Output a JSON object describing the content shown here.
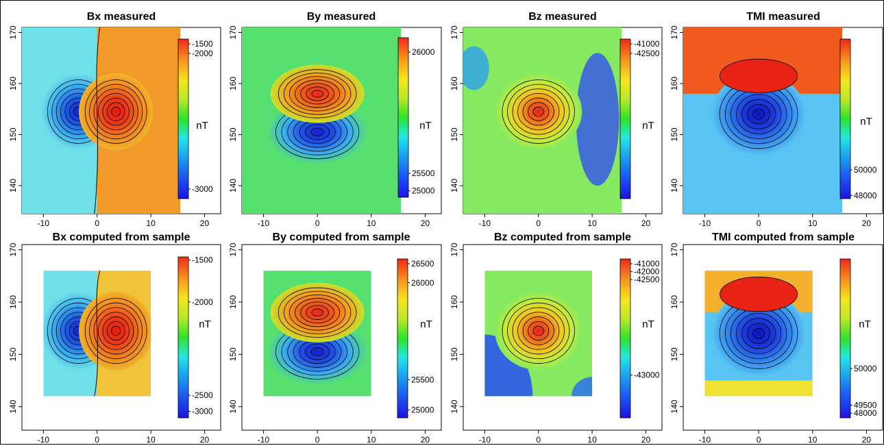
{
  "chart_data": [
    {
      "type": "heatmap",
      "title": "Bx   measured",
      "field": "bx",
      "kind": "measured",
      "xticks": [
        "-10",
        "0",
        "10",
        "20"
      ],
      "yticks": [
        "140",
        "150",
        "160",
        "170"
      ],
      "xlim": [
        -14,
        23
      ],
      "ylim": [
        134.5,
        171
      ],
      "extent": {
        "x": [
          -14,
          15.5
        ],
        "y": [
          134.5,
          171
        ]
      },
      "colorbar": {
        "unit": "nT",
        "labels": [
          "-1500",
          "-2000",
          "-3000"
        ],
        "label_fracs": [
          0.03,
          0.09,
          0.94
        ]
      }
    },
    {
      "type": "heatmap",
      "title": "By   measured",
      "field": "by",
      "kind": "measured",
      "xticks": [
        "-10",
        "0",
        "10",
        "20"
      ],
      "yticks": [
        "140",
        "150",
        "160",
        "170"
      ],
      "xlim": [
        -14,
        23
      ],
      "ylim": [
        134.5,
        171
      ],
      "extent": {
        "x": [
          -14,
          15.5
        ],
        "y": [
          134.5,
          171
        ]
      },
      "colorbar": {
        "unit": "nT",
        "labels": [
          "26000",
          "25500",
          "25000"
        ],
        "label_fracs": [
          0.09,
          0.85,
          0.96
        ]
      }
    },
    {
      "type": "heatmap",
      "title": "Bz   measured",
      "field": "bz",
      "kind": "measured",
      "xticks": [
        "-10",
        "0",
        "10",
        "20"
      ],
      "yticks": [
        "140",
        "150",
        "160",
        "170"
      ],
      "xlim": [
        -14,
        23
      ],
      "ylim": [
        134.5,
        171
      ],
      "extent": {
        "x": [
          -14,
          15.5
        ],
        "y": [
          134.5,
          171
        ]
      },
      "colorbar": {
        "unit": "nT",
        "labels": [
          "-41000",
          "-42500"
        ],
        "label_fracs": [
          0.03,
          0.09
        ]
      }
    },
    {
      "type": "heatmap",
      "title": "TMI   measured",
      "field": "tmi",
      "kind": "measured",
      "xticks": [
        "-10",
        "0",
        "10",
        "20"
      ],
      "yticks": [
        "140",
        "150",
        "160",
        "170"
      ],
      "xlim": [
        -14,
        23
      ],
      "ylim": [
        134.5,
        171
      ],
      "extent": {
        "x": [
          -14,
          15.5
        ],
        "y": [
          134.5,
          171
        ]
      },
      "colorbar": {
        "unit": "nT",
        "labels": [
          "50000",
          "48000"
        ],
        "label_fracs": [
          0.82,
          0.98
        ]
      }
    },
    {
      "type": "heatmap",
      "title": "Bx   computed from sample",
      "field": "bx",
      "kind": "computed",
      "xticks": [
        "-10",
        "0",
        "10",
        "20"
      ],
      "yticks": [
        "140",
        "150",
        "160",
        "170"
      ],
      "xlim": [
        -14,
        23
      ],
      "ylim": [
        135.5,
        171
      ],
      "extent": {
        "x": [
          -10,
          10
        ],
        "y": [
          142,
          166
        ]
      },
      "colorbar": {
        "unit": "nT",
        "labels": [
          "-1500",
          "-2000",
          "-2500",
          "-3000"
        ],
        "label_fracs": [
          0.02,
          0.28,
          0.86,
          0.96
        ]
      }
    },
    {
      "type": "heatmap",
      "title": "By  computed from sample",
      "field": "by",
      "kind": "computed",
      "xticks": [
        "-10",
        "0",
        "10",
        "20"
      ],
      "yticks": [
        "140",
        "150",
        "160",
        "170"
      ],
      "xlim": [
        -14,
        23
      ],
      "ylim": [
        135.5,
        171
      ],
      "extent": {
        "x": [
          -10,
          10
        ],
        "y": [
          142,
          166
        ]
      },
      "colorbar": {
        "unit": "nT",
        "labels": [
          "26500",
          "26000",
          "25500",
          "25000"
        ],
        "label_fracs": [
          0.03,
          0.15,
          0.76,
          0.95
        ]
      }
    },
    {
      "type": "heatmap",
      "title": "Bz   computed from sample",
      "field": "bz",
      "kind": "computed",
      "xticks": [
        "-10",
        "0",
        "10",
        "20"
      ],
      "yticks": [
        "140",
        "150",
        "160",
        "170"
      ],
      "xlim": [
        -14,
        23
      ],
      "ylim": [
        135.5,
        171
      ],
      "extent": {
        "x": [
          -10,
          10
        ],
        "y": [
          142,
          166
        ]
      },
      "colorbar": {
        "unit": "nT",
        "labels": [
          "-41000",
          "-42000",
          "-42500",
          "-43000"
        ],
        "label_fracs": [
          0.03,
          0.08,
          0.13,
          0.73
        ]
      }
    },
    {
      "type": "heatmap",
      "title": "TMI   computed from sample",
      "field": "tmi",
      "kind": "computed",
      "xticks": [
        "-10",
        "0",
        "10",
        "20"
      ],
      "yticks": [
        "140",
        "150",
        "160",
        "170"
      ],
      "xlim": [
        -14,
        23
      ],
      "ylim": [
        135.5,
        171
      ],
      "extent": {
        "x": [
          -10,
          10
        ],
        "y": [
          142,
          166
        ]
      },
      "colorbar": {
        "unit": "nT",
        "labels": [
          "50000",
          "49500",
          "48000"
        ],
        "label_fracs": [
          0.69,
          0.92,
          0.97
        ]
      }
    }
  ]
}
